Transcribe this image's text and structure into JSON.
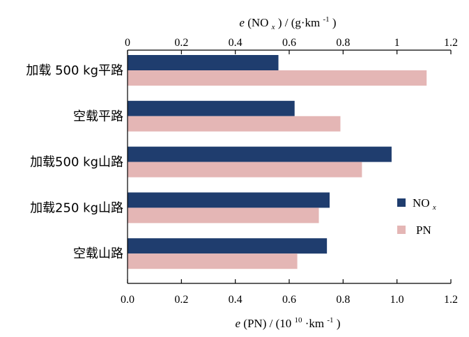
{
  "chart_data": {
    "type": "bar",
    "orientation": "horizontal",
    "categories": [
      "加载 500 kg平路",
      "空载平路",
      "加载500 kg山路",
      "加载250 kg山路",
      "空载山路"
    ],
    "series": [
      {
        "name": "NOx",
        "legend_main": "NO",
        "legend_sub": "x",
        "color": "#1f3d6e",
        "axis": "top",
        "values": [
          0.56,
          0.62,
          0.98,
          0.75,
          0.74
        ]
      },
      {
        "name": "PN",
        "legend_main": "PN",
        "color": "#e4b6b5",
        "axis": "bottom",
        "values": [
          1.11,
          0.79,
          0.87,
          0.71,
          0.63
        ]
      }
    ],
    "top_axis": {
      "label_italic": "e",
      "label_pre": "(NO",
      "label_sub": "x",
      "label_mid": ") / (g·km",
      "label_sup": "-1",
      "label_post": ")",
      "xlim": [
        0,
        1.2
      ],
      "ticks": [
        0,
        0.2,
        0.4,
        0.6,
        0.8,
        1,
        1.2
      ],
      "tick_labels": [
        "0",
        "0.2",
        "0.4",
        "0.6",
        "0.8",
        "1",
        "1.2"
      ]
    },
    "bottom_axis": {
      "label_italic": "e",
      "label_pre": "(PN) / (10",
      "label_sup1": "10",
      "label_mid": " ·km",
      "label_sup2": "-1",
      "label_post": ")",
      "xlim": [
        0,
        1.2
      ],
      "ticks": [
        0,
        0.2,
        0.4,
        0.6,
        0.8,
        1.0,
        1.2
      ],
      "tick_labels": [
        "0.0",
        "0.2",
        "0.4",
        "0.6",
        "0.8",
        "1.0",
        "1.2"
      ]
    },
    "legend_position": "right"
  }
}
